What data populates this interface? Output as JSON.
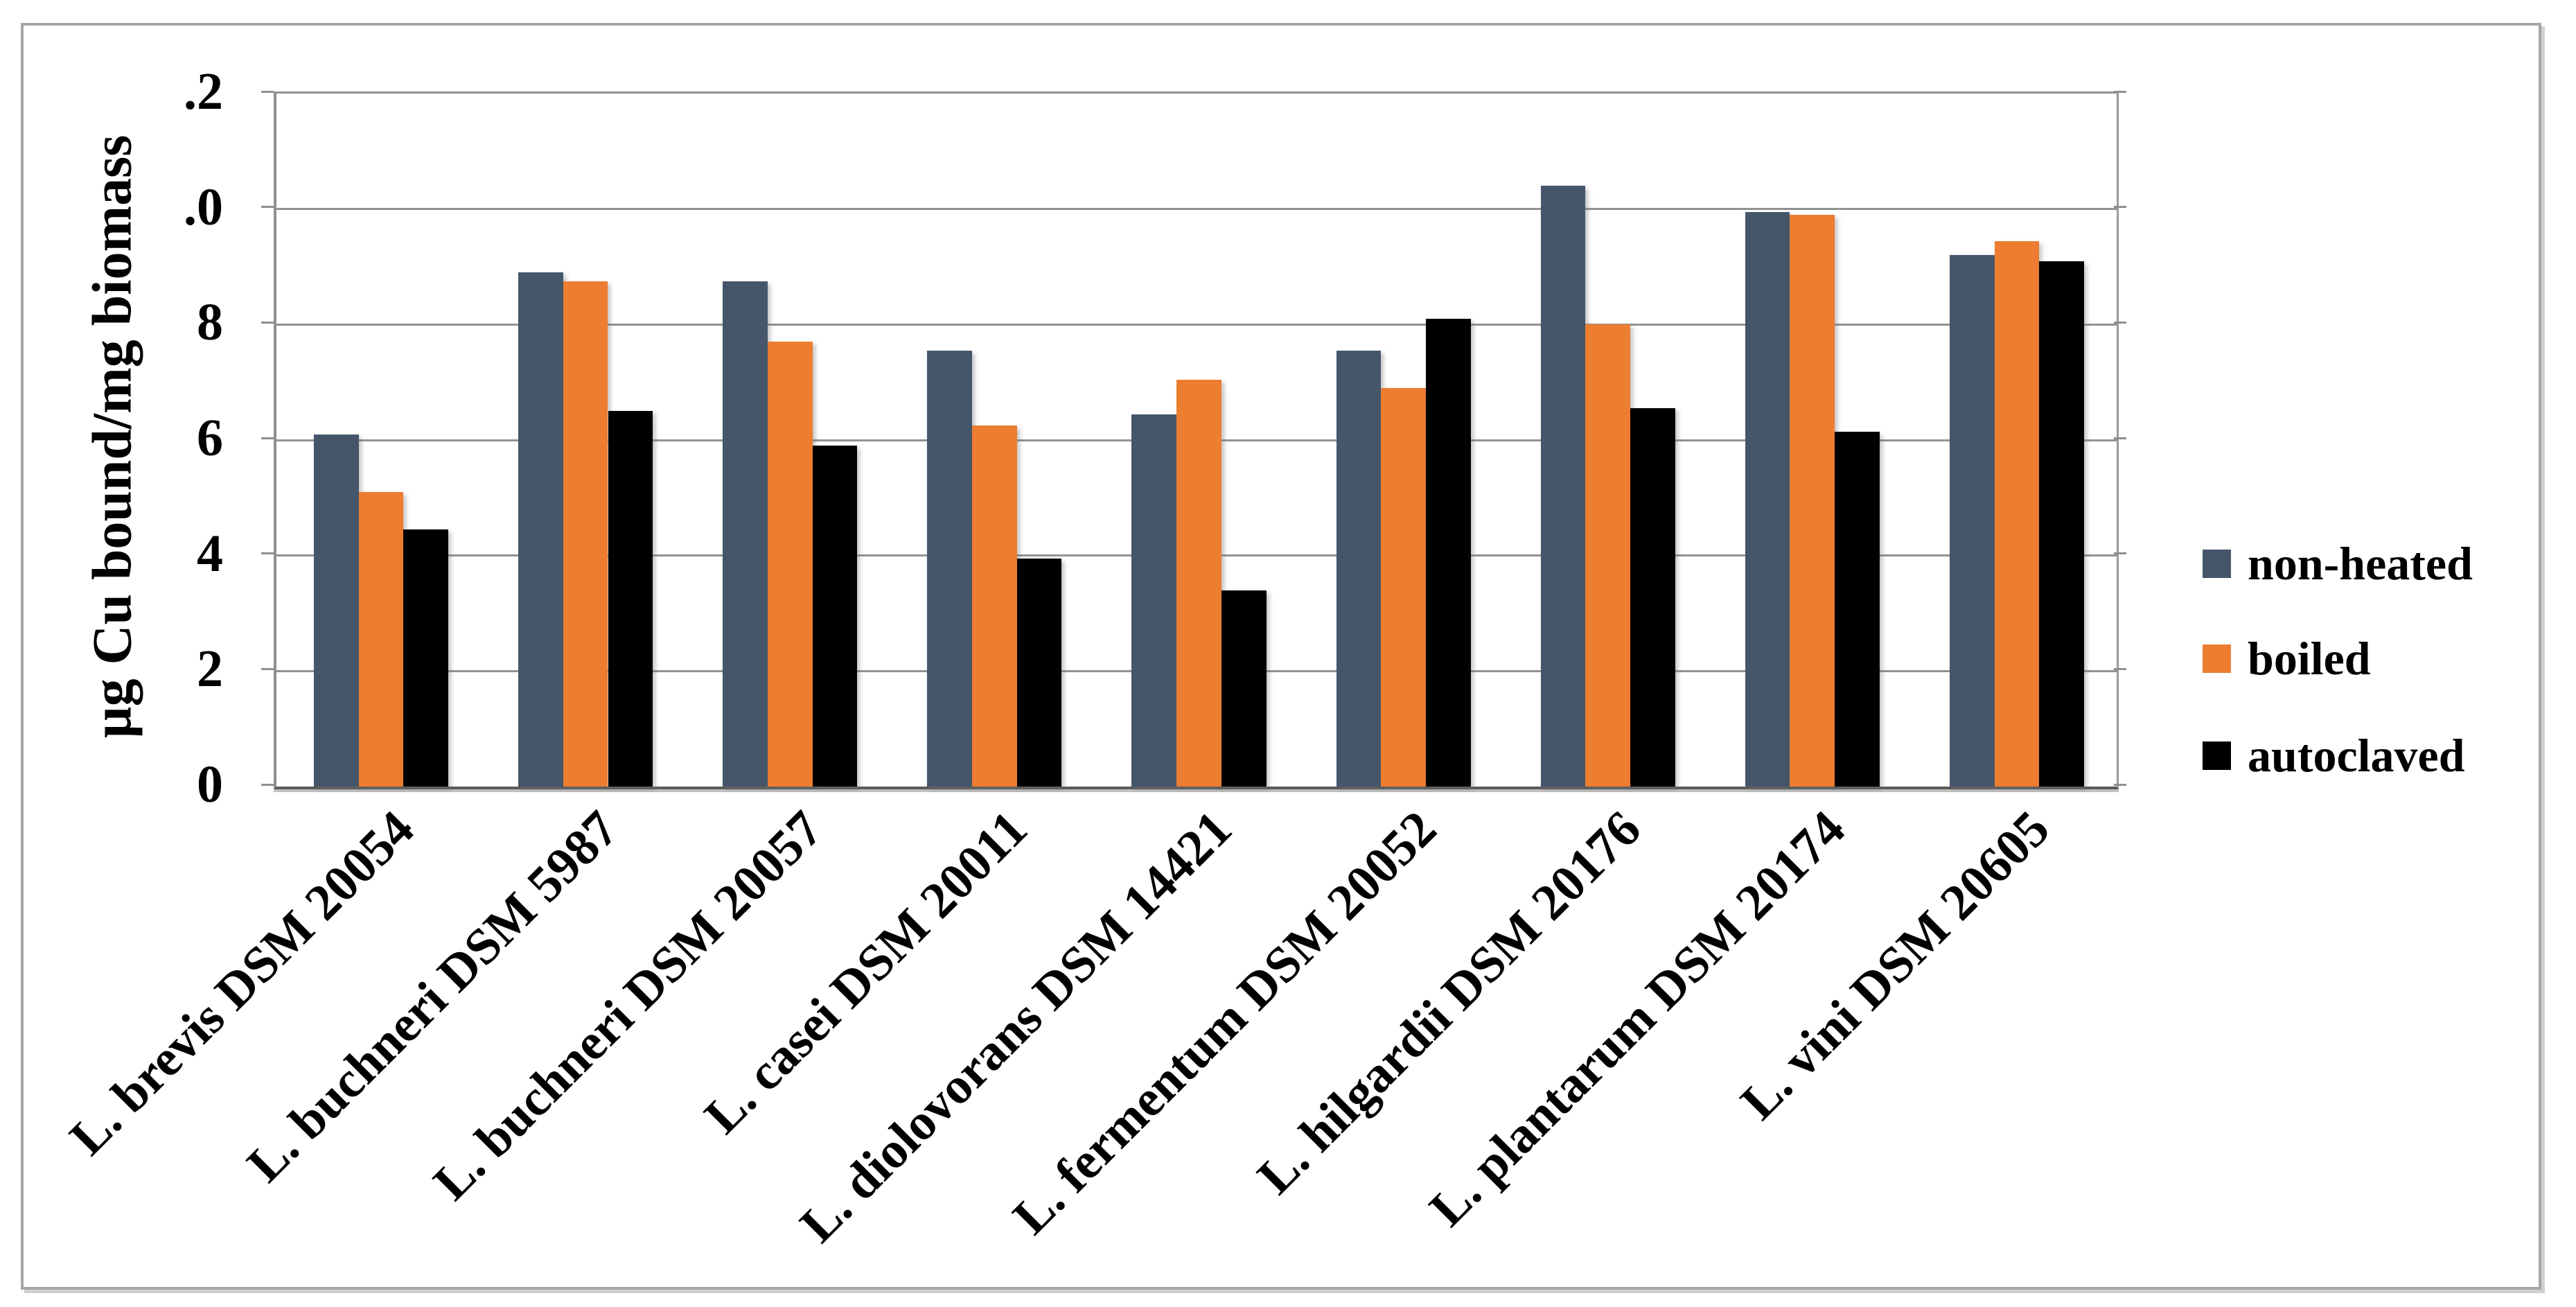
{
  "chart_data": {
    "type": "bar",
    "title": "",
    "ylabel": "µg Cu bound/mg biomass",
    "xlabel": "",
    "categories": [
      "L. brevis DSM 20054",
      "L. buchneri DSM 5987",
      "L. buchneri DSM 20057",
      "L. casei DSM 20011",
      "L. diolovorans DSM 14421",
      "L. fermentum DSM 20052",
      "L. hilgardii DSM 20176",
      "L. plantarum DSM 20174",
      "L. vini DSM 20605"
    ],
    "series": [
      {
        "name": "non-heated",
        "color": "#45566B",
        "values": [
          0.61,
          0.89,
          0.875,
          0.755,
          0.645,
          0.755,
          1.04,
          0.995,
          0.92
        ]
      },
      {
        "name": "boiled",
        "color": "#EC7D31",
        "values": [
          0.51,
          0.875,
          0.77,
          0.625,
          0.705,
          0.69,
          0.8,
          0.99,
          0.945
        ]
      },
      {
        "name": "autoclaved",
        "color": "#000000",
        "values": [
          0.445,
          0.65,
          0.59,
          0.395,
          0.34,
          0.81,
          0.655,
          0.615,
          0.91
        ]
      }
    ],
    "ylim": [
      0,
      1.2
    ],
    "y_major_unit": 0.2,
    "y_tick_labels_shown_top_to_bottom": [
      ".2",
      ".0",
      "8",
      "6",
      "4",
      "2",
      "0"
    ],
    "grid": "horizontal",
    "legend_position": "right-middle"
  },
  "colors": {
    "gridline": "#929292",
    "axis_baseline": "#5B5B5B",
    "frame_border": "#A6A6A6",
    "background": "#FFFFFF"
  }
}
